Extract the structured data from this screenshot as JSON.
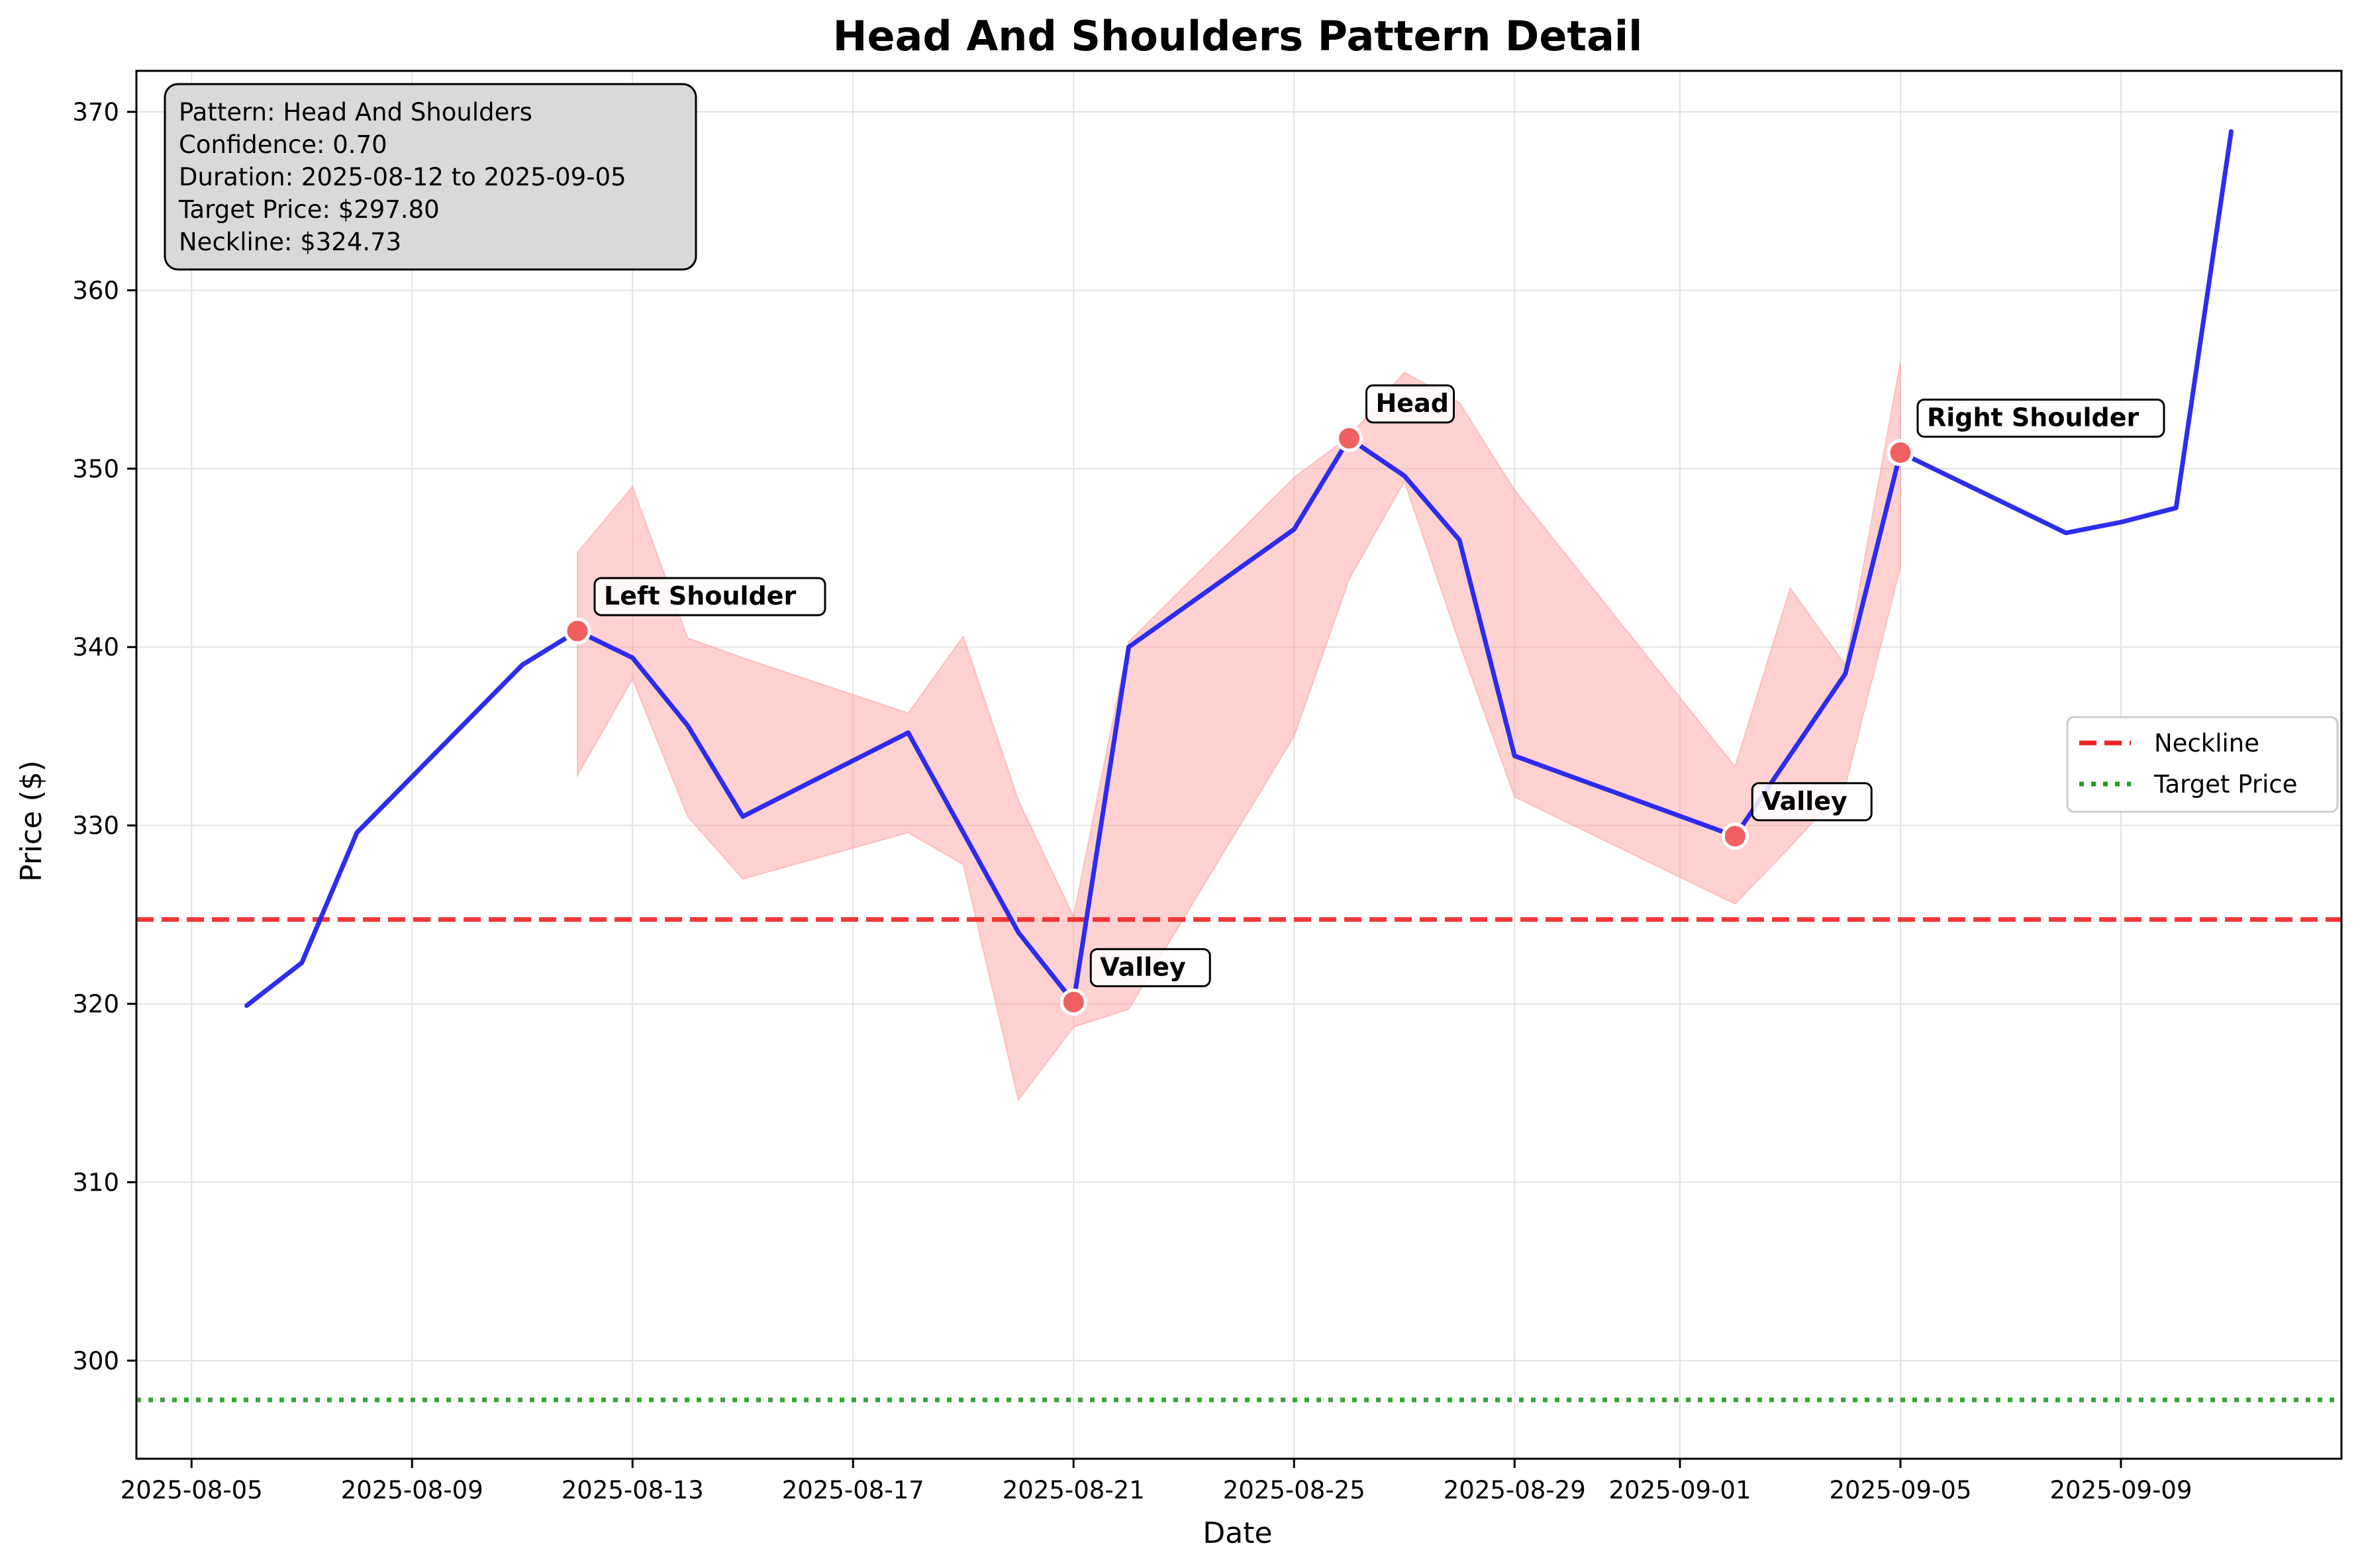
{
  "chart_data": {
    "type": "line",
    "title": "Head And Shoulders Pattern Detail",
    "xlabel": "Date",
    "ylabel": "Price ($)",
    "xlim": [
      "2025-08-04",
      "2025-09-13"
    ],
    "ylim": [
      294.5,
      372.3
    ],
    "x_ticks": [
      "2025-08-05",
      "2025-08-09",
      "2025-08-13",
      "2025-08-17",
      "2025-08-21",
      "2025-08-25",
      "2025-08-29",
      "2025-09-01",
      "2025-09-05",
      "2025-09-09"
    ],
    "y_ticks": [
      300,
      310,
      320,
      330,
      340,
      350,
      360,
      370
    ],
    "grid": true,
    "series": [
      {
        "color": "#2222ee",
        "points": [
          [
            "2025-08-06",
            319.9
          ],
          [
            "2025-08-07",
            322.3
          ],
          [
            "2025-08-08",
            329.6
          ],
          [
            "2025-08-11",
            339.0
          ],
          [
            "2025-08-12",
            340.9
          ],
          [
            "2025-08-13",
            339.4
          ],
          [
            "2025-08-14",
            335.6
          ],
          [
            "2025-08-15",
            330.5
          ],
          [
            "2025-08-18",
            335.2
          ],
          [
            "2025-08-20",
            324.0
          ],
          [
            "2025-08-21",
            320.1
          ],
          [
            "2025-08-22",
            340.0
          ],
          [
            "2025-08-25",
            346.6
          ],
          [
            "2025-08-26",
            351.7
          ],
          [
            "2025-08-27",
            349.6
          ],
          [
            "2025-08-28",
            346.0
          ],
          [
            "2025-08-29",
            333.9
          ],
          [
            "2025-09-02",
            329.4
          ],
          [
            "2025-09-04",
            338.5
          ],
          [
            "2025-09-05",
            350.9
          ],
          [
            "2025-09-08",
            346.4
          ],
          [
            "2025-09-09",
            347.0
          ],
          [
            "2025-09-10",
            347.8
          ],
          [
            "2025-09-11",
            368.9
          ]
        ]
      }
    ],
    "shaded_band": {
      "color": "#ff9999",
      "upper": [
        [
          "2025-08-12",
          345.3
        ],
        [
          "2025-08-13",
          349.0
        ],
        [
          "2025-08-14",
          340.5
        ],
        [
          "2025-08-15",
          339.4
        ],
        [
          "2025-08-18",
          336.3
        ],
        [
          "2025-08-19",
          340.6
        ],
        [
          "2025-08-20",
          331.4
        ],
        [
          "2025-08-21",
          324.9
        ],
        [
          "2025-08-22",
          340.3
        ],
        [
          "2025-08-25",
          349.5
        ],
        [
          "2025-08-26",
          351.8
        ],
        [
          "2025-08-27",
          355.4
        ],
        [
          "2025-08-28",
          353.7
        ],
        [
          "2025-08-29",
          348.8
        ],
        [
          "2025-09-02",
          333.3
        ],
        [
          "2025-09-03",
          343.3
        ],
        [
          "2025-09-04",
          339.0
        ],
        [
          "2025-09-05",
          356.0
        ]
      ],
      "lower": [
        [
          "2025-08-12",
          332.8
        ],
        [
          "2025-08-13",
          338.2
        ],
        [
          "2025-08-14",
          330.5
        ],
        [
          "2025-08-15",
          327.0
        ],
        [
          "2025-08-18",
          329.6
        ],
        [
          "2025-08-19",
          327.8
        ],
        [
          "2025-08-20",
          314.6
        ],
        [
          "2025-08-21",
          318.7
        ],
        [
          "2025-08-22",
          319.7
        ],
        [
          "2025-08-25",
          335.0
        ],
        [
          "2025-08-26",
          343.8
        ],
        [
          "2025-08-27",
          349.3
        ],
        [
          "2025-08-28",
          340.2
        ],
        [
          "2025-08-29",
          331.6
        ],
        [
          "2025-09-02",
          325.6
        ],
        [
          "2025-09-03",
          328.8
        ],
        [
          "2025-09-04",
          332.2
        ],
        [
          "2025-09-05",
          344.5
        ]
      ]
    },
    "pattern_points": [
      {
        "label": "Left Shoulder",
        "x": "2025-08-12",
        "y": 340.9
      },
      {
        "label": "Valley",
        "x": "2025-08-21",
        "y": 320.1
      },
      {
        "label": "Head",
        "x": "2025-08-26",
        "y": 351.7
      },
      {
        "label": "Valley",
        "x": "2025-09-02",
        "y": 329.4
      },
      {
        "label": "Right Shoulder",
        "x": "2025-09-05",
        "y": 350.9
      }
    ],
    "point_color": "#f06060",
    "neckline": {
      "label": "Neckline",
      "value": 324.73,
      "color": "#ee2222",
      "style": "dashed"
    },
    "target": {
      "label": "Target Price",
      "value": 297.8,
      "color": "#229922",
      "style": "dotted"
    },
    "legend_position": "right",
    "info_box": [
      "Pattern: Head And Shoulders",
      "Confidence: 0.70",
      "Duration: 2025-08-12 to 2025-09-05",
      "Target Price: $297.80",
      "Neckline: $324.73"
    ]
  }
}
